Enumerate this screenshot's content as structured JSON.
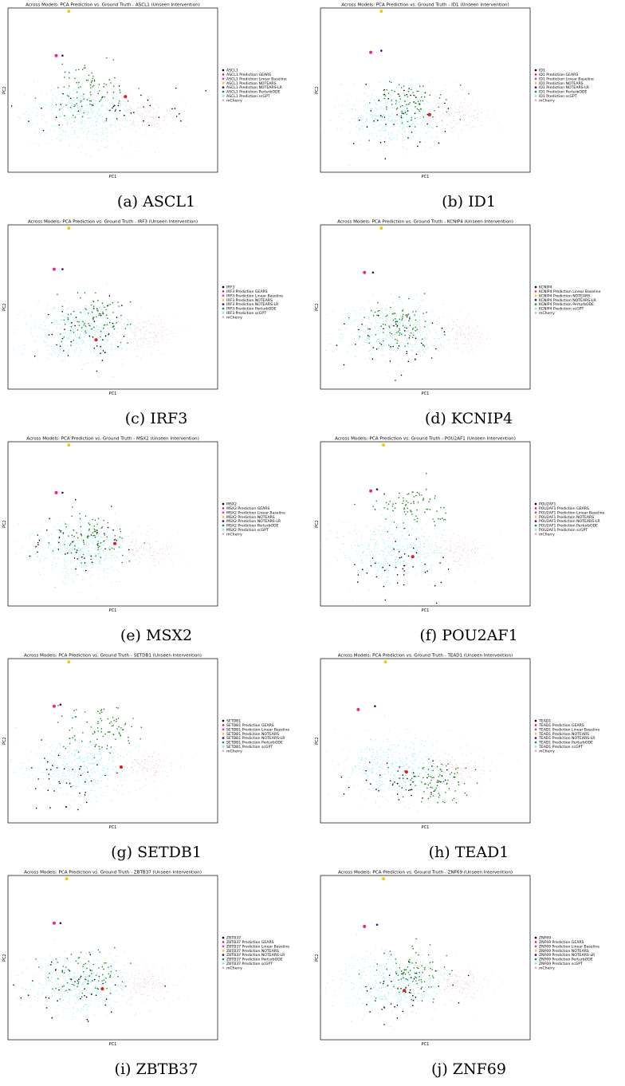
{
  "chart_data": [
    {
      "type": "scatter",
      "caption": "(a) ASCL1",
      "title": "Across Models: PCA Prediction vs. Ground Truth - ASCL1 (Unseen Intervention)",
      "xlabel": "PC1",
      "ylabel": "PC2",
      "legend": [
        "ASCL1",
        "ASCL1 Prediction GEARS",
        "ASCL1 Prediction Linear Baseline",
        "ASCL1 Prediction NOTEARS",
        "ASCL1 Prediction NOTEARS-LR",
        "ASCL1 Prediction PerturbODE",
        "ASCL1 Prediction scGPT",
        "mCherry"
      ],
      "series_colors": [
        "#000000",
        "#e41a1c",
        "#e7298a",
        "#f2c500",
        "#4b0082",
        "#1a8a1a",
        "#5ee8e8",
        "#f4a0b0"
      ],
      "ground_truth": {
        "cx": 0.52,
        "cy": 0.64,
        "sx": 0.26,
        "sy": 0.07
      },
      "perturbode": {
        "cx": 0.38,
        "cy": 0.49,
        "sx": 0.09,
        "sy": 0.08
      },
      "gears": [
        0.56,
        0.54
      ],
      "notears": [
        0.29,
        0.02
      ],
      "linear": [
        0.23,
        0.29
      ],
      "notears_lr": [
        0.26,
        0.29
      ]
    },
    {
      "type": "scatter",
      "caption": "(b) ID1",
      "title": "Across Models: PCA Prediction vs. Ground Truth - ID1 (Unseen Intervention)",
      "xlabel": "PC1",
      "ylabel": "PC2",
      "legend": [
        "ID1",
        "ID1 Prediction GEARS",
        "ID1 Prediction Linear Baseline",
        "ID1 Prediction NOTEARS",
        "ID1 Prediction NOTEARS-LR",
        "ID1 Prediction PerturbODE",
        "ID1 Prediction scGPT",
        "mCherry"
      ],
      "series_colors": [
        "#000000",
        "#e41a1c",
        "#e7298a",
        "#f2c500",
        "#4b0082",
        "#1a8a1a",
        "#5ee8e8",
        "#f4a0b0"
      ],
      "ground_truth": {
        "cx": 0.38,
        "cy": 0.66,
        "sx": 0.1,
        "sy": 0.11
      },
      "perturbode": {
        "cx": 0.42,
        "cy": 0.58,
        "sx": 0.09,
        "sy": 0.07
      },
      "gears": [
        0.52,
        0.65
      ],
      "notears": [
        0.29,
        0.02
      ],
      "linear": [
        0.24,
        0.27
      ],
      "notears_lr": [
        0.29,
        0.26
      ]
    },
    {
      "type": "scatter",
      "caption": "(c) IRF3",
      "title": "Across Models: PCA Prediction vs. Ground Truth - IRF3 (Unseen Intervention)",
      "xlabel": "PC1",
      "ylabel": "PC2",
      "legend": [
        "IRF3",
        "IRF3 Prediction GEARS",
        "IRF3 Prediction Linear Baseline",
        "IRF3 Prediction NOTEARS",
        "IRF3 Prediction NOTEARS-LR",
        "IRF3 Prediction PerturbODE",
        "IRF3 Prediction scGPT",
        "mCherry"
      ],
      "series_colors": [
        "#000000",
        "#e41a1c",
        "#e7298a",
        "#f2c500",
        "#4b0082",
        "#1a8a1a",
        "#5ee8e8",
        "#f4a0b0"
      ],
      "ground_truth": {
        "cx": 0.39,
        "cy": 0.66,
        "sx": 0.13,
        "sy": 0.11
      },
      "perturbode": {
        "cx": 0.41,
        "cy": 0.58,
        "sx": 0.09,
        "sy": 0.07
      },
      "gears": [
        0.42,
        0.7
      ],
      "notears": [
        0.29,
        0.02
      ],
      "linear": [
        0.22,
        0.27
      ],
      "notears_lr": [
        0.26,
        0.27
      ]
    },
    {
      "type": "scatter",
      "caption": "(d) KCNIP4",
      "title": "Across Models: PCA Prediction vs. Ground Truth - KCNIP4 (Unseen Intervention)",
      "xlabel": "PC1",
      "ylabel": "PC2",
      "legend": [
        "KCNIP4",
        "KCNIP4 Prediction Linear Baseline",
        "KCNIP4 Prediction NOTEARS",
        "KCNIP4 Prediction NOTEARS-LR",
        "KCNIP4 Prediction PerturbODE",
        "KCNIP4 Prediction scGPT",
        "mCherry"
      ],
      "series_colors": [
        "#000000",
        "#e7298a",
        "#f2c500",
        "#4b0082",
        "#1a8a1a",
        "#5ee8e8",
        "#f4a0b0"
      ],
      "ground_truth": {
        "cx": 0.34,
        "cy": 0.69,
        "sx": 0.12,
        "sy": 0.1
      },
      "perturbode": {
        "cx": 0.38,
        "cy": 0.6,
        "sx": 0.09,
        "sy": 0.08
      },
      "gears": null,
      "notears": [
        0.29,
        0.02
      ],
      "linear": [
        0.21,
        0.29
      ],
      "notears_lr": [
        0.25,
        0.29
      ]
    },
    {
      "type": "scatter",
      "caption": "(e) MSX2",
      "title": "Across Models: PCA Prediction vs. Ground Truth - MSX2 (Unseen Intervention)",
      "xlabel": "PC1",
      "ylabel": "PC2",
      "legend": [
        "MSX2",
        "MSX2 Prediction GEARS",
        "MSX2 Prediction Linear Baseline",
        "MSX2 Prediction NOTEARS",
        "MSX2 Prediction NOTEARS-LR",
        "MSX2 Prediction PerturbODE",
        "MSX2 Prediction scGPT",
        "mCherry"
      ],
      "series_colors": [
        "#000000",
        "#e41a1c",
        "#e7298a",
        "#f2c500",
        "#4b0082",
        "#1a8a1a",
        "#5ee8e8",
        "#f4a0b0"
      ],
      "ground_truth": {
        "cx": 0.34,
        "cy": 0.63,
        "sx": 0.11,
        "sy": 0.08
      },
      "perturbode": {
        "cx": 0.38,
        "cy": 0.57,
        "sx": 0.09,
        "sy": 0.07
      },
      "gears": [
        0.51,
        0.62
      ],
      "notears": [
        0.29,
        0.02
      ],
      "linear": [
        0.23,
        0.31
      ],
      "notears_lr": [
        0.26,
        0.31
      ]
    },
    {
      "type": "scatter",
      "caption": "(f) POU2AF1",
      "title": "Across Models: PCA Prediction vs. Ground Truth - POU2AF1 (Unseen Intervention)",
      "xlabel": "PC1",
      "ylabel": "PC2",
      "legend": [
        "POU2AF1",
        "POU2AF1 Prediction GEARS",
        "POU2AF1 Prediction Linear Baseline",
        "POU2AF1 Prediction NOTEARS",
        "POU2AF1 Prediction NOTEARS-LR",
        "POU2AF1 Prediction PerturbODE",
        "POU2AF1 Prediction scGPT",
        "mCherry"
      ],
      "series_colors": [
        "#000000",
        "#e41a1c",
        "#e7298a",
        "#f2c500",
        "#4b0082",
        "#1a8a1a",
        "#5ee8e8",
        "#f4a0b0"
      ],
      "ground_truth": {
        "cx": 0.36,
        "cy": 0.76,
        "sx": 0.12,
        "sy": 0.07
      },
      "perturbode": {
        "cx": 0.42,
        "cy": 0.4,
        "sx": 0.09,
        "sy": 0.07
      },
      "gears": [
        0.44,
        0.7
      ],
      "notears": [
        0.3,
        0.02
      ],
      "linear": [
        0.24,
        0.3
      ],
      "notears_lr": [
        0.27,
        0.29
      ]
    },
    {
      "type": "scatter",
      "caption": "(g) SETDB1",
      "title": "Across Models: PCA Prediction vs. Ground Truth - SETDB1 (Unseen Intervention)",
      "xlabel": "PC1",
      "ylabel": "PC2",
      "legend": [
        "SETDB1",
        "SETDB1 Prediction GEARS",
        "SETDB1 Prediction Linear Baseline",
        "SETDB1 Prediction NOTEARS",
        "SETDB1 Prediction NOTEARS-LR",
        "SETDB1 Prediction PerturbODE",
        "SETDB1 Prediction scGPT",
        "mCherry"
      ],
      "series_colors": [
        "#000000",
        "#e41a1c",
        "#e7298a",
        "#f2c500",
        "#4b0082",
        "#1a8a1a",
        "#5ee8e8",
        "#f4a0b0"
      ],
      "ground_truth": {
        "cx": 0.3,
        "cy": 0.72,
        "sx": 0.1,
        "sy": 0.1
      },
      "perturbode": {
        "cx": 0.44,
        "cy": 0.44,
        "sx": 0.09,
        "sy": 0.08
      },
      "gears": [
        0.54,
        0.66
      ],
      "notears": [
        0.29,
        0.02
      ],
      "linear": [
        0.22,
        0.29
      ],
      "notears_lr": [
        0.25,
        0.28
      ]
    },
    {
      "type": "scatter",
      "caption": "(h) TEAD1",
      "title": "Across Models: PCA Prediction vs. Ground Truth - TEAD1 (Unseen Intervention)",
      "xlabel": "PC1",
      "ylabel": "PC2",
      "legend": [
        "TEAD1",
        "TEAD1 Prediction GEARS",
        "TEAD1 Prediction Linear Baseline",
        "TEAD1 Prediction NOTEARS",
        "TEAD1 Prediction NOTEARS-LR",
        "TEAD1 Prediction PerturbODE",
        "TEAD1 Prediction scGPT",
        "mCherry"
      ],
      "series_colors": [
        "#000000",
        "#e41a1c",
        "#e7298a",
        "#f2c500",
        "#4b0082",
        "#1a8a1a",
        "#5ee8e8",
        "#f4a0b0"
      ],
      "ground_truth": {
        "cx": 0.4,
        "cy": 0.74,
        "sx": 0.12,
        "sy": 0.06
      },
      "perturbode": {
        "cx": 0.56,
        "cy": 0.75,
        "sx": 0.09,
        "sy": 0.06
      },
      "gears": [
        0.41,
        0.69
      ],
      "notears": [
        0.31,
        0.02
      ],
      "linear": [
        0.18,
        0.31
      ],
      "notears_lr": [
        0.26,
        0.29
      ]
    },
    {
      "type": "scatter",
      "caption": "(i) ZBTB37",
      "title": "Across Models: PCA Prediction vs. Ground Truth - ZBTB37 (Unseen Intervention)",
      "xlabel": "PC1",
      "ylabel": "PC2",
      "legend": [
        "ZBTB37",
        "ZBTB37 Prediction GEARS",
        "ZBTB37 Prediction Linear Baseline",
        "ZBTB37 Prediction NOTEARS",
        "ZBTB37 Prediction NOTEARS-LR",
        "ZBTB37 Prediction PerturbODE",
        "ZBTB37 Prediction scGPT",
        "mCherry"
      ],
      "series_colors": [
        "#000000",
        "#e41a1c",
        "#e7298a",
        "#f2c500",
        "#4b0082",
        "#1a8a1a",
        "#5ee8e8",
        "#f4a0b0"
      ],
      "ground_truth": {
        "cx": 0.3,
        "cy": 0.7,
        "sx": 0.14,
        "sy": 0.1
      },
      "perturbode": {
        "cx": 0.38,
        "cy": 0.6,
        "sx": 0.09,
        "sy": 0.07
      },
      "gears": [
        0.45,
        0.69
      ],
      "notears": [
        0.28,
        0.02
      ],
      "linear": [
        0.22,
        0.29
      ],
      "notears_lr": [
        0.25,
        0.29
      ]
    },
    {
      "type": "scatter",
      "caption": "(j) ZNF69",
      "title": "Across Models: PCA Prediction vs. Ground Truth - ZNF69 (Unseen Intervention)",
      "xlabel": "PC1",
      "ylabel": "PC2",
      "legend": [
        "ZNF69",
        "ZNF69 Prediction GEARS",
        "ZNF69 Prediction Linear Baseline",
        "ZNF69 Prediction NOTEARS",
        "ZNF69 Prediction NOTEARS-LR",
        "ZNF69 Prediction PerturbODE",
        "ZNF69 Prediction scGPT",
        "mCherry"
      ],
      "series_colors": [
        "#000000",
        "#e41a1c",
        "#e7298a",
        "#f2c500",
        "#4b0082",
        "#1a8a1a",
        "#5ee8e8",
        "#f4a0b0"
      ],
      "ground_truth": {
        "cx": 0.4,
        "cy": 0.68,
        "sx": 0.1,
        "sy": 0.09
      },
      "perturbode": {
        "cx": 0.42,
        "cy": 0.6,
        "sx": 0.09,
        "sy": 0.07
      },
      "gears": [
        0.4,
        0.7
      ],
      "notears": [
        0.3,
        0.02
      ],
      "linear": [
        0.21,
        0.31
      ],
      "notears_lr": [
        0.27,
        0.3
      ]
    }
  ]
}
